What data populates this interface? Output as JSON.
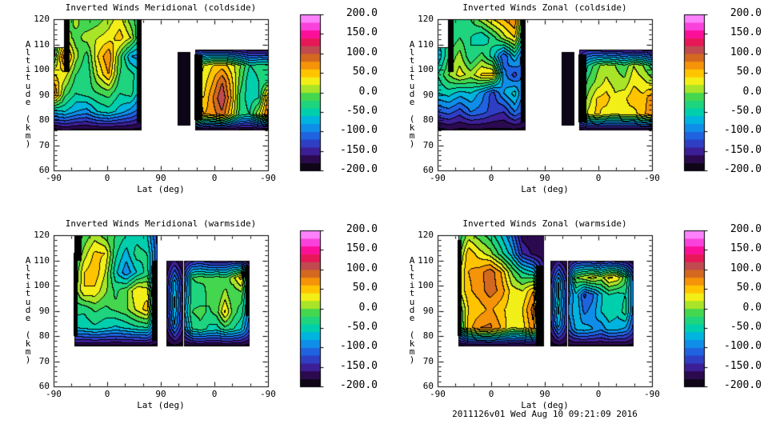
{
  "footer": "2011126v01 Wed Aug 10 09:21:09 2016",
  "colors": {
    "background": "#ffffff",
    "frame": "#000000",
    "text": "#000000",
    "contour_line": "#000000",
    "bands": [
      "#0e0618",
      "#2b0a50",
      "#3c1f96",
      "#2f3fc4",
      "#1f63e0",
      "#0e8ee8",
      "#00b4df",
      "#00cfae",
      "#1ed47e",
      "#44d64e",
      "#a8e428",
      "#f2ee18",
      "#ffc400",
      "#f59309",
      "#d2691e",
      "#c04a50",
      "#e81758",
      "#fb0f9b",
      "#fb41dc",
      "#fb82fb"
    ]
  },
  "axes": {
    "x_label": "Lat (deg)",
    "y_label": "Altitude (km)",
    "x_tick_labels": [
      "-90",
      "0",
      "90",
      "0",
      "-90"
    ],
    "x_tick_t": [
      0,
      0.25,
      0.5,
      0.75,
      1
    ],
    "y_ticks": [
      120,
      110,
      100,
      90,
      80,
      70,
      60
    ],
    "alt_min": 60,
    "alt_max": 120
  },
  "colorbar": {
    "labels": [
      "200.0",
      "150.0",
      "100.0",
      "50.0",
      "0.0",
      "-50.0",
      "-100.0",
      "-150.0",
      "-200.0"
    ],
    "values": [
      200,
      150,
      100,
      50,
      0,
      -50,
      -100,
      -150,
      -200
    ],
    "min": -200,
    "max": 200
  },
  "chart_data": {
    "type": "filled_contour",
    "value_range": [
      -200,
      200
    ],
    "contour_interval": 20,
    "x_axis_note": "Latitude sweeps -90 to 90 (first half) then 90 back to -90 (second half)",
    "y_axis_note": "Altitude 60-120 km; data present ~76-120 km with gaps",
    "panels": [
      {
        "id": "meridional-coldside",
        "title": "Inverted Winds Meridional (coldside)",
        "regions": [
          {
            "t0": 0,
            "t1": 0.41,
            "alt_bottom": 76,
            "alt_top": 120,
            "notch": {
              "u_max": 0.118,
              "alt": 109
            },
            "grid": [
              [
                -190,
                -180,
                -185,
                -185,
                -185,
                -185,
                -185,
                -185,
                -190
              ],
              [
                -70,
                -60,
                -80,
                -90,
                -60,
                -50,
                -70,
                -90,
                -120
              ],
              [
                90,
                -10,
                -40,
                -30,
                -20,
                -10,
                -40,
                -30,
                -80
              ],
              [
                40,
                30,
                -20,
                -40,
                20,
                60,
                -20,
                -30,
                -60
              ],
              [
                -30,
                95,
                10,
                -30,
                40,
                80,
                -10,
                -80,
                -90
              ],
              [
                -40,
                20,
                -10,
                10,
                20,
                30,
                50,
                20,
                -60
              ],
              [
                -50,
                -30,
                10,
                -20,
                -10,
                10,
                30,
                -10,
                -40
              ]
            ]
          },
          {
            "t0": 0.578,
            "t1": 0.636,
            "alt_bottom": 78,
            "alt_top": 107,
            "grid": [
              [
                -185,
                -185
              ],
              [
                -185,
                -185
              ]
            ]
          },
          {
            "t0": 0.657,
            "t1": 1.0,
            "alt_bottom": 76,
            "alt_top": 108,
            "grid": [
              [
                -185,
                -185,
                -185,
                -185,
                -185,
                -185,
                -185,
                -185,
                -190
              ],
              [
                140,
                60,
                70,
                95,
                40,
                -30,
                -40,
                20,
                85
              ],
              [
                50,
                40,
                80,
                120,
                60,
                -30,
                -50,
                -40,
                70
              ],
              [
                20,
                30,
                60,
                100,
                50,
                -10,
                -60,
                -40,
                -20
              ],
              [
                -10,
                20,
                40,
                50,
                30,
                0,
                -40,
                -30,
                -30
              ],
              [
                -165,
                -150,
                -155,
                -160,
                -160,
                -165,
                -170,
                -170,
                -175
              ]
            ]
          }
        ],
        "black_marks": [
          [
            0.048,
            0.075,
            99,
            120
          ],
          [
            0.388,
            0.41,
            79,
            120
          ],
          [
            0.657,
            0.695,
            80,
            106
          ]
        ]
      },
      {
        "id": "zonal-coldside",
        "title": "Inverted Winds Zonal (coldside)",
        "regions": [
          {
            "t0": 0,
            "t1": 0.41,
            "alt_bottom": 76,
            "alt_top": 120,
            "notch": {
              "u_max": 0.118,
              "alt": 109
            },
            "grid": [
              [
                -190,
                -180,
                -185,
                -185,
                -185,
                -185,
                -185,
                -185,
                -190
              ],
              [
                -120,
                -110,
                -130,
                -100,
                -110,
                -130,
                -140,
                -100,
                -130
              ],
              [
                -60,
                -50,
                -70,
                -60,
                -90,
                -130,
                -80,
                -50,
                -120
              ],
              [
                -40,
                0,
                30,
                10,
                45,
                50,
                -90,
                -130,
                -80
              ],
              [
                -80,
                -20,
                10,
                -40,
                -10,
                -50,
                -120,
                -60,
                -130
              ],
              [
                -60,
                -40,
                -20,
                -40,
                -60,
                -30,
                10,
                40,
                -80
              ],
              [
                -50,
                -30,
                -40,
                -20,
                10,
                40,
                60,
                80,
                -60
              ]
            ]
          },
          {
            "t0": 0.578,
            "t1": 0.636,
            "alt_bottom": 78,
            "alt_top": 107,
            "grid": [
              [
                -185,
                -185
              ],
              [
                -185,
                -185
              ]
            ]
          },
          {
            "t0": 0.657,
            "t1": 1.0,
            "alt_bottom": 76,
            "alt_top": 108,
            "grid": [
              [
                -185,
                -185,
                -185,
                -185,
                -185,
                -185,
                -185,
                -185,
                -190
              ],
              [
                -60,
                25,
                45,
                30,
                20,
                35,
                30,
                55,
                75
              ],
              [
                -40,
                5,
                40,
                50,
                25,
                35,
                55,
                45,
                80
              ],
              [
                -70,
                -15,
                5,
                25,
                10,
                5,
                35,
                25,
                10
              ],
              [
                -110,
                -40,
                -5,
                10,
                0,
                -15,
                20,
                0,
                -30
              ],
              [
                -165,
                -150,
                -155,
                -160,
                -160,
                -165,
                -170,
                -170,
                -175
              ]
            ]
          }
        ],
        "black_marks": [
          [
            0.048,
            0.075,
            99,
            120
          ],
          [
            0.388,
            0.41,
            79,
            120
          ],
          [
            0.657,
            0.695,
            79,
            106
          ]
        ]
      },
      {
        "id": "meridional-warmside",
        "title": "Inverted Winds Meridional (warmside)",
        "regions": [
          {
            "t0": 0.0933,
            "t1": 0.485,
            "alt_bottom": 76,
            "alt_top": 120,
            "grid": [
              [
                -185,
                -185,
                -185,
                -185,
                -185,
                -185,
                -185,
                -185,
                -190
              ],
              [
                -60,
                -55,
                -45,
                -55,
                -65,
                -55,
                -45,
                -40,
                -130
              ],
              [
                -30,
                -35,
                -15,
                -25,
                -15,
                -5,
                25,
                50,
                -120
              ],
              [
                -20,
                40,
                35,
                5,
                -25,
                -5,
                40,
                30,
                -130
              ],
              [
                -30,
                40,
                55,
                20,
                -55,
                -95,
                -60,
                -30,
                -140
              ],
              [
                -40,
                10,
                45,
                40,
                -35,
                -70,
                -30,
                -40,
                -120
              ],
              [
                -50,
                -15,
                10,
                -10,
                -20,
                -40,
                -50,
                -60,
                -130
              ]
            ]
          },
          {
            "t0": 0.526,
            "t1": 0.601,
            "alt_bottom": 76,
            "alt_top": 110,
            "grid": [
              [
                -190,
                -185,
                -190
              ],
              [
                -160,
                -80,
                -150
              ],
              [
                -150,
                -55,
                -140
              ],
              [
                -160,
                -70,
                -150
              ],
              [
                -180,
                -160,
                -180
              ]
            ]
          },
          {
            "t0": 0.608,
            "t1": 0.914,
            "alt_bottom": 76,
            "alt_top": 110,
            "grid": [
              [
                -185,
                -185,
                -185,
                -185,
                -185,
                -185,
                -185,
                -185,
                -190
              ],
              [
                -110,
                -40,
                -30,
                -45,
                -50,
                -30,
                -40,
                -60,
                -120
              ],
              [
                -85,
                -20,
                -10,
                -25,
                -10,
                45,
                -10,
                -30,
                -100
              ],
              [
                -105,
                -30,
                -40,
                -10,
                -20,
                10,
                -20,
                -10,
                -90
              ],
              [
                -125,
                -20,
                -10,
                -20,
                -10,
                -20,
                15,
                50,
                -105
              ],
              [
                -170,
                -150,
                -145,
                -155,
                -160,
                -160,
                -150,
                -160,
                -175
              ]
            ]
          }
        ],
        "black_marks": [
          [
            0.0933,
            0.112,
            80,
            113
          ],
          [
            0.097,
            0.13,
            110,
            120
          ],
          [
            0.458,
            0.485,
            78,
            110
          ],
          [
            0.896,
            0.914,
            88,
            108
          ]
        ]
      },
      {
        "id": "zonal-warmside",
        "title": "Inverted Winds Zonal (warmside)",
        "regions": [
          {
            "t0": 0.0933,
            "t1": 0.496,
            "alt_bottom": 76,
            "alt_top": 120,
            "grid": [
              [
                -185,
                -185,
                -185,
                -185,
                -185,
                -185,
                -185,
                -185,
                -190
              ],
              [
                -60,
                50,
                80,
                85,
                60,
                20,
                30,
                75,
                -120
              ],
              [
                -30,
                40,
                50,
                65,
                45,
                30,
                40,
                90,
                -130
              ],
              [
                15,
                55,
                70,
                90,
                75,
                30,
                20,
                60,
                -140
              ],
              [
                10,
                60,
                70,
                95,
                60,
                0,
                -40,
                -60,
                -150
              ],
              [
                -20,
                55,
                30,
                10,
                -30,
                -70,
                -140,
                -165,
                -175
              ],
              [
                -40,
                10,
                -10,
                -30,
                -60,
                -100,
                -170,
                -180,
                -180
              ]
            ]
          },
          {
            "t0": 0.526,
            "t1": 0.601,
            "alt_bottom": 76,
            "alt_top": 110,
            "grid": [
              [
                -190,
                -185,
                -190
              ],
              [
                -150,
                -70,
                -140
              ],
              [
                -140,
                -50,
                -130
              ],
              [
                -150,
                -60,
                -140
              ],
              [
                -180,
                -160,
                -180
              ]
            ]
          },
          {
            "t0": 0.608,
            "t1": 0.914,
            "alt_bottom": 76,
            "alt_top": 110,
            "grid": [
              [
                -185,
                -185,
                -185,
                -185,
                -185,
                -185,
                -185,
                -185,
                -190
              ],
              [
                -120,
                -75,
                -70,
                -80,
                -95,
                -70,
                -75,
                -85,
                -130
              ],
              [
                -100,
                -60,
                -105,
                -90,
                -60,
                -45,
                -55,
                -30,
                -110
              ],
              [
                -110,
                -65,
                -125,
                -105,
                -65,
                -40,
                -50,
                -40,
                -100
              ],
              [
                -120,
                0,
                15,
                30,
                10,
                45,
                35,
                -15,
                -110
              ],
              [
                -170,
                -150,
                -140,
                -150,
                -155,
                -150,
                -155,
                -160,
                -175
              ]
            ]
          }
        ],
        "black_marks": [
          [
            0.0933,
            0.112,
            80,
            118
          ],
          [
            0.46,
            0.496,
            76,
            108
          ]
        ]
      }
    ]
  }
}
